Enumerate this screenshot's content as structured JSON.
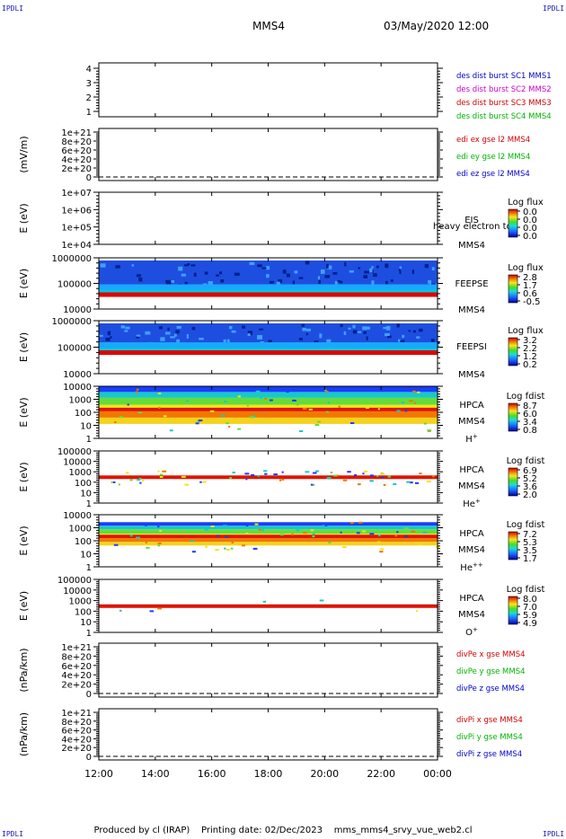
{
  "header": {
    "corner_label": "IPDLI",
    "probe": "MMS4",
    "datetime": "03/May/2020 12:00"
  },
  "footer": {
    "text": "Produced by cl (IRAP)    Printing date: 02/Dec/2023    mms_mms4_srvy_vue_web2.cl"
  },
  "colors": {
    "frame": "#000000",
    "red": "#d00000",
    "green": "#00b400",
    "blue": "#0000c8",
    "magenta": "#d000d0"
  },
  "chart_data": [
    {
      "id": "burst",
      "type": "table",
      "ylabel": "",
      "yticks": [
        "4",
        "3",
        "2",
        "1"
      ],
      "ylim": [
        0.5,
        4.5
      ],
      "legend": [
        {
          "text": "des dist burst SC1 MMS1",
          "color": "#0000c8"
        },
        {
          "text": "des dist burst SC2 MMS2",
          "color": "#d000d0"
        },
        {
          "text": "des dist burst SC3 MMS3",
          "color": "#d00000"
        },
        {
          "text": "des dist burst SC4 MMS4",
          "color": "#00b400"
        }
      ]
    },
    {
      "id": "edi",
      "type": "line",
      "ylabel": "(mV/m)",
      "yticks": [
        "1e+21",
        "8e+20",
        "6e+20",
        "4e+20",
        "2e+20",
        "0"
      ],
      "ylim": [
        0,
        1e+21
      ],
      "zero_line": true,
      "legend": [
        {
          "text": "edi ex gse l2 MMS4",
          "color": "#d00000"
        },
        {
          "text": "edi ey gse l2 MMS4",
          "color": "#00b400"
        },
        {
          "text": "edi ez gse l2 MMS4",
          "color": "#0000c8"
        }
      ]
    },
    {
      "id": "eis",
      "type": "heatmap",
      "ylabel": "E (eV)",
      "yticks": [
        "1e+07",
        "1e+06",
        "1e+05",
        "1e+04"
      ],
      "ylim": [
        10000.0,
        10000000.0
      ],
      "instrument": "EIS",
      "sc": "MMS4",
      "overlay": "heavy electron to",
      "cbar_title": "Log flux",
      "cbar_ticks": [
        "0.0",
        "0.0",
        "0.0",
        "0.0"
      ]
    },
    {
      "id": "feepse",
      "type": "heatmap",
      "ylabel": "E (eV)",
      "yticks": [
        "1000000",
        "100000",
        "10000"
      ],
      "ylim": [
        10000.0,
        1000000.0
      ],
      "instrument": "FEEPSE",
      "sc": "MMS4",
      "cbar_title": "Log flux",
      "cbar_ticks": [
        "2.8",
        "1.7",
        "0.6",
        "-0.5"
      ],
      "band_energy_eV": 35000
    },
    {
      "id": "feepsi",
      "type": "heatmap",
      "ylabel": "E (eV)",
      "yticks": [
        "1000000",
        "100000",
        "10000"
      ],
      "ylim": [
        10000.0,
        1000000.0
      ],
      "instrument": "FEEPSI",
      "sc": "MMS4",
      "cbar_title": "Log flux",
      "cbar_ticks": [
        "3.2",
        "2.2",
        "1.2",
        "0.2"
      ],
      "band_energy_eV": 60000
    },
    {
      "id": "hpca_h",
      "type": "heatmap",
      "ylabel": "E (eV)",
      "yticks": [
        "10000",
        "1000",
        "100",
        "10",
        "1"
      ],
      "ylim": [
        1,
        30000
      ],
      "instrument": "HPCA",
      "sc": "MMS4",
      "species": "H",
      "species_sup": "+",
      "cbar_title": "Log fdist",
      "cbar_ticks": [
        "8.7",
        "6.0",
        "3.4",
        "0.8"
      ],
      "band_energy_eV": 300
    },
    {
      "id": "hpca_he",
      "type": "heatmap",
      "ylabel": "E (eV)",
      "yticks": [
        "100000",
        "10000",
        "1000",
        "100",
        "10",
        "1"
      ],
      "ylim": [
        1,
        100000
      ],
      "instrument": "HPCA",
      "sc": "MMS4",
      "species": "He",
      "species_sup": "+",
      "cbar_title": "Log fdist",
      "cbar_ticks": [
        "6.9",
        "5.2",
        "3.6",
        "2.0"
      ],
      "band_energy_eV": 300
    },
    {
      "id": "hpca_hepp",
      "type": "heatmap",
      "ylabel": "E (eV)",
      "yticks": [
        "10000",
        "1000",
        "100",
        "10",
        "1"
      ],
      "ylim": [
        1,
        30000
      ],
      "instrument": "HPCA",
      "sc": "MMS4",
      "species": "He",
      "species_sup": "++",
      "cbar_title": "Log fdist",
      "cbar_ticks": [
        "7.2",
        "5.3",
        "3.5",
        "1.7"
      ],
      "band_energy_eV": 400
    },
    {
      "id": "hpca_o",
      "type": "heatmap",
      "ylabel": "E (eV)",
      "yticks": [
        "100000",
        "10000",
        "1000",
        "100",
        "10",
        "1"
      ],
      "ylim": [
        1,
        100000
      ],
      "instrument": "HPCA",
      "sc": "MMS4",
      "species": "O",
      "species_sup": "+",
      "cbar_title": "Log fdist",
      "cbar_ticks": [
        "8.0",
        "7.0",
        "5.9",
        "4.9"
      ],
      "band_energy_eV": 300
    },
    {
      "id": "divpe",
      "type": "line",
      "ylabel": "(nPa/km)",
      "yticks": [
        "1e+21",
        "8e+20",
        "6e+20",
        "4e+20",
        "2e+20",
        "0"
      ],
      "ylim": [
        0,
        1e+21
      ],
      "zero_line": true,
      "legend": [
        {
          "text": "divPe x gse MMS4",
          "color": "#d00000"
        },
        {
          "text": "divPe y gse MMS4",
          "color": "#00b400"
        },
        {
          "text": "divPe z gse MMS4",
          "color": "#0000c8"
        }
      ]
    },
    {
      "id": "divpi",
      "type": "line",
      "ylabel": "(nPa/km)",
      "yticks": [
        "1e+21",
        "8e+20",
        "6e+20",
        "4e+20",
        "2e+20",
        "0"
      ],
      "ylim": [
        0,
        1e+21
      ],
      "zero_line": true,
      "legend": [
        {
          "text": "divPi x gse MMS4",
          "color": "#d00000"
        },
        {
          "text": "divPi y gse MMS4",
          "color": "#00b400"
        },
        {
          "text": "divPi z gse MMS4",
          "color": "#0000c8"
        }
      ]
    }
  ],
  "x_axis": {
    "ticks": [
      "12:00",
      "14:00",
      "16:00",
      "18:00",
      "20:00",
      "22:00",
      "00:00"
    ]
  }
}
